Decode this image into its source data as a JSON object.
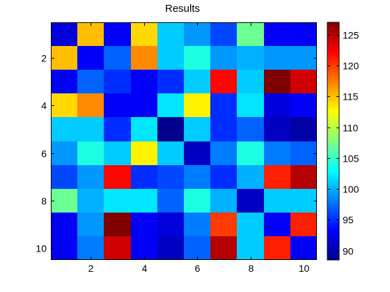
{
  "chart_data": {
    "type": "heatmap",
    "title": "Results",
    "xlabel": "",
    "ylabel": "",
    "x_range": [
      0.5,
      10.5
    ],
    "y_range": [
      0.5,
      10.5
    ],
    "x_ticks": [
      2,
      4,
      6,
      8,
      10
    ],
    "y_ticks": [
      2,
      4,
      6,
      8,
      10
    ],
    "y_direction": "reversed",
    "grid": false,
    "colormap": "jet",
    "clim": [
      88.5,
      127
    ],
    "colorbar": {
      "location": "right",
      "ticks": [
        90,
        95,
        100,
        105,
        110,
        115,
        120,
        125
      ]
    },
    "values": [
      [
        92,
        115,
        93,
        114,
        101,
        99,
        96,
        107,
        93,
        93
      ],
      [
        115,
        93,
        97,
        117,
        101,
        104,
        99,
        100,
        99,
        99
      ],
      [
        93,
        97,
        95,
        93,
        95,
        101,
        122,
        101,
        127,
        124
      ],
      [
        114,
        117,
        93,
        93,
        102,
        113,
        95,
        102,
        92,
        93
      ],
      [
        101,
        101,
        95,
        102,
        89,
        101,
        95,
        97,
        91,
        90
      ],
      [
        99,
        104,
        101,
        113,
        101,
        91,
        98,
        104,
        98,
        97
      ],
      [
        96,
        99,
        122,
        95,
        96,
        98,
        95,
        100,
        121,
        125
      ],
      [
        107,
        100,
        102,
        102,
        97,
        104,
        100,
        91,
        101,
        101
      ],
      [
        93,
        99,
        127,
        93,
        92,
        98,
        120,
        101,
        93,
        121
      ],
      [
        93,
        98,
        124,
        93,
        91,
        97,
        125,
        101,
        121,
        93
      ]
    ]
  }
}
